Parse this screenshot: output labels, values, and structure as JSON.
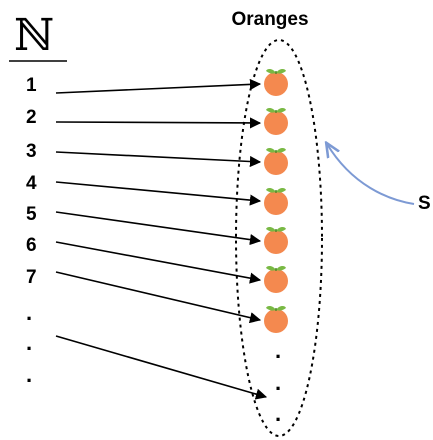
{
  "set_symbol": "ℕ",
  "oranges_label": "Oranges",
  "side_label": "S",
  "numbers": [
    "1",
    "2",
    "3",
    "4",
    "5",
    "6",
    "7"
  ],
  "left_dots": [
    ".",
    ".",
    "."
  ],
  "right_dots": [
    ".",
    ".",
    "."
  ],
  "icons": {
    "fruit": "orange-icon",
    "pointer": "curved-arrow-icon"
  },
  "colors": {
    "orange": "#f4894f",
    "leaf": "#79b944",
    "arrow_blue": "#7d9ad4",
    "line": "#000000"
  }
}
